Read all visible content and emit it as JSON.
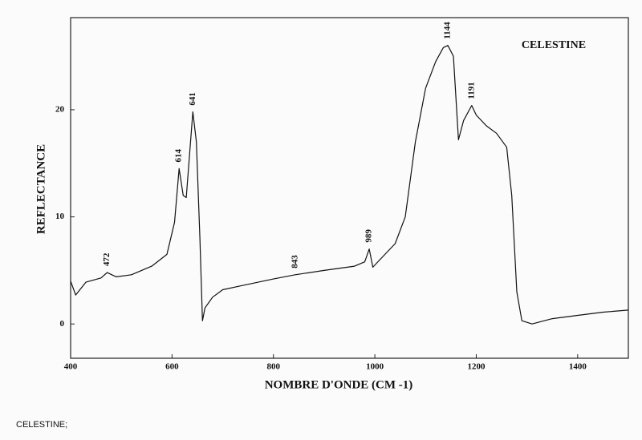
{
  "chart_data": {
    "type": "line",
    "title": "CELESTINE",
    "x_label": "NOMBRE D'ONDE (CM -1)",
    "y_label": "REFLECTANCE",
    "x": [
      400,
      410,
      430,
      460,
      472,
      490,
      520,
      560,
      590,
      605,
      614,
      622,
      628,
      641,
      648,
      655,
      660,
      665,
      680,
      700,
      740,
      800,
      843,
      900,
      960,
      980,
      989,
      996,
      1010,
      1040,
      1060,
      1080,
      1100,
      1120,
      1135,
      1144,
      1155,
      1165,
      1175,
      1191,
      1200,
      1220,
      1240,
      1260,
      1270,
      1280,
      1290,
      1310,
      1350,
      1400,
      1450,
      1500
    ],
    "series": [
      {
        "color": "#111111",
        "values": [
          4.0,
          2.7,
          3.9,
          4.3,
          4.8,
          4.4,
          4.6,
          5.4,
          6.5,
          9.5,
          14.5,
          12.0,
          11.8,
          19.8,
          17.0,
          8.0,
          0.3,
          1.5,
          2.5,
          3.2,
          3.6,
          4.2,
          4.6,
          5.0,
          5.4,
          5.8,
          7.0,
          5.3,
          6.0,
          7.5,
          10.0,
          17.0,
          22.0,
          24.5,
          25.8,
          26.0,
          25.0,
          17.2,
          19.0,
          20.4,
          19.5,
          18.5,
          17.8,
          16.5,
          12.0,
          3.0,
          0.3,
          0.0,
          0.5,
          0.8,
          1.1,
          1.3
        ]
      }
    ],
    "peaks": [
      472,
      614,
      641,
      843,
      989,
      1144,
      1191
    ],
    "xlim": [
      400,
      1500
    ],
    "ylim": [
      -3.2,
      28.6
    ],
    "xticks": [
      400,
      600,
      800,
      1000,
      1200,
      1400
    ],
    "yticks": [
      0,
      10,
      20
    ]
  },
  "caption": "CELESTINE;"
}
